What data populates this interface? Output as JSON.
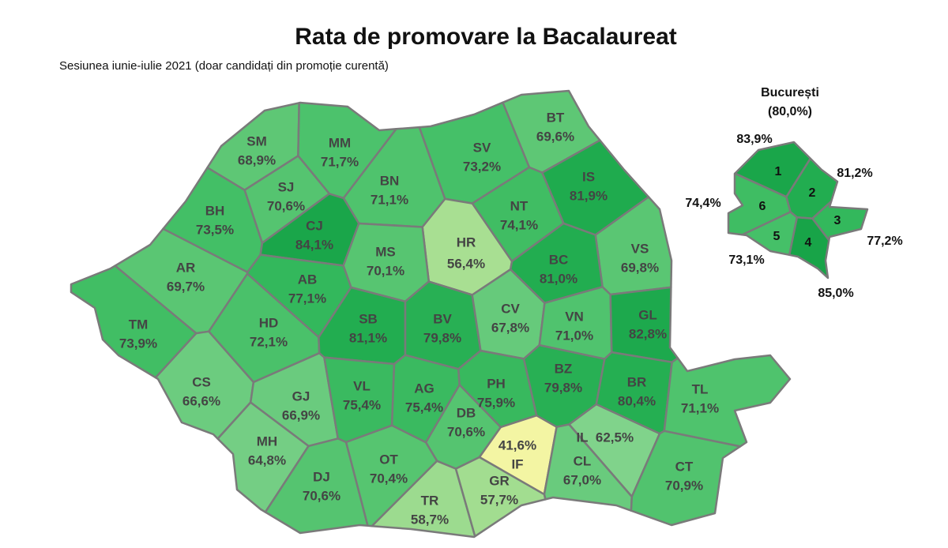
{
  "title": "Rata de promovare la Bacalaureat",
  "subtitle": "Sesiunea iunie-iulie 2021 (doar candidați din promoție curentă)",
  "counties": [
    {
      "code": "SM",
      "label": "68,9%",
      "color": "#5ec775"
    },
    {
      "code": "MM",
      "label": "71,7%",
      "color": "#4cc26c"
    },
    {
      "code": "BT",
      "label": "69,6%",
      "color": "#5ec775"
    },
    {
      "code": "SV",
      "label": "73,2%",
      "color": "#45c068"
    },
    {
      "code": "SJ",
      "label": "70,6%",
      "color": "#55c470"
    },
    {
      "code": "BN",
      "label": "71,1%",
      "color": "#4fc36d"
    },
    {
      "code": "IS",
      "label": "81,9%",
      "color": "#1fab4e"
    },
    {
      "code": "BH",
      "label": "73,5%",
      "color": "#43bf66"
    },
    {
      "code": "CJ",
      "label": "84,1%",
      "color": "#1aa64a"
    },
    {
      "code": "HR",
      "label": "56,4%",
      "color": "#a8df92"
    },
    {
      "code": "NT",
      "label": "74,1%",
      "color": "#40bd63"
    },
    {
      "code": "VS",
      "label": "69,8%",
      "color": "#5ac673"
    },
    {
      "code": "AR",
      "label": "69,7%",
      "color": "#5ac673"
    },
    {
      "code": "MS",
      "label": "70,1%",
      "color": "#57c571"
    },
    {
      "code": "BC",
      "label": "81,0%",
      "color": "#22ad50"
    },
    {
      "code": "AB",
      "label": "77,1%",
      "color": "#33b85c"
    },
    {
      "code": "TM",
      "label": "73,9%",
      "color": "#41be64"
    },
    {
      "code": "HD",
      "label": "72,1%",
      "color": "#4ac16a"
    },
    {
      "code": "SB",
      "label": "81,1%",
      "color": "#22ad50"
    },
    {
      "code": "BV",
      "label": "79,8%",
      "color": "#28b054"
    },
    {
      "code": "CV",
      "label": "67,8%",
      "color": "#66ca7b"
    },
    {
      "code": "VN",
      "label": "71,0%",
      "color": "#50c36e"
    },
    {
      "code": "GL",
      "label": "82,8%",
      "color": "#1da94d"
    },
    {
      "code": "CS",
      "label": "66,6%",
      "color": "#6ccc7f"
    },
    {
      "code": "GJ",
      "label": "66,9%",
      "color": "#6acb7e"
    },
    {
      "code": "VL",
      "label": "75,4%",
      "color": "#3aba60"
    },
    {
      "code": "AG",
      "label": "75,4%",
      "color": "#3aba60"
    },
    {
      "code": "PH",
      "label": "75,9%",
      "color": "#38b95e"
    },
    {
      "code": "BZ",
      "label": "79,8%",
      "color": "#28b054"
    },
    {
      "code": "BR",
      "label": "80,4%",
      "color": "#25af52"
    },
    {
      "code": "TL",
      "label": "71,1%",
      "color": "#4fc36d"
    },
    {
      "code": "DB",
      "label": "70,6%",
      "color": "#55c470"
    },
    {
      "code": "MH",
      "label": "64,8%",
      "color": "#74ce84"
    },
    {
      "code": "IF",
      "label": "41,6%",
      "color": "#f3f5a3"
    },
    {
      "code": "IL",
      "label": "62,5%",
      "color": "#80d38b"
    },
    {
      "code": "DJ",
      "label": "70,6%",
      "color": "#55c470"
    },
    {
      "code": "OT",
      "label": "70,4%",
      "color": "#56c570"
    },
    {
      "code": "CL",
      "label": "67,0%",
      "color": "#69cb7d"
    },
    {
      "code": "CT",
      "label": "70,9%",
      "color": "#51c36e"
    },
    {
      "code": "TR",
      "label": "58,7%",
      "color": "#9cdb8f"
    },
    {
      "code": "GR",
      "label": "57,7%",
      "color": "#a2dd90"
    }
  ],
  "bucharest": {
    "name": "București",
    "label": "(80,0%)",
    "sectors": [
      {
        "sector": "1",
        "label": "83,9%",
        "color": "#1aa64a"
      },
      {
        "sector": "2",
        "label": "81,2%",
        "color": "#22ad50"
      },
      {
        "sector": "3",
        "label": "77,2%",
        "color": "#33b85c"
      },
      {
        "sector": "4",
        "label": "85,0%",
        "color": "#18a448"
      },
      {
        "sector": "5",
        "label": "73,1%",
        "color": "#45c068"
      },
      {
        "sector": "6",
        "label": "74,4%",
        "color": "#3fbd63"
      }
    ]
  }
}
